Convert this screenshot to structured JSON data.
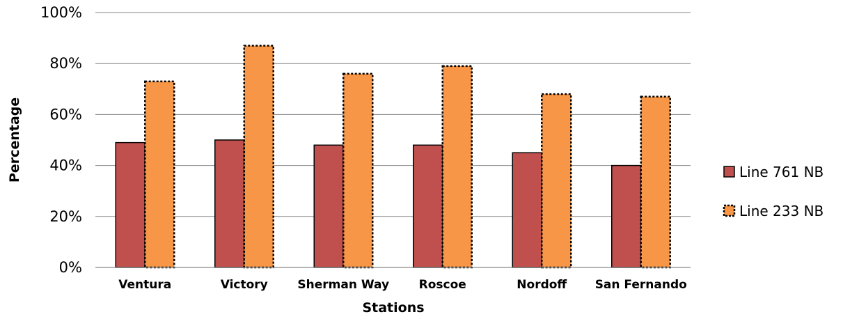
{
  "chart_data": {
    "type": "bar",
    "title": "",
    "xlabel": "Stations",
    "ylabel": "Percentage",
    "categories": [
      "Ventura",
      "Victory",
      "Sherman Way",
      "Roscoe",
      "Nordoff",
      "San Fernando"
    ],
    "series": [
      {
        "name": "Line 761 NB",
        "values": [
          49,
          50,
          48,
          48,
          45,
          40
        ],
        "color": "#C0504D"
      },
      {
        "name": "Line 233 NB",
        "values": [
          73,
          87,
          76,
          79,
          68,
          67
        ],
        "color": "#F79646"
      }
    ],
    "ylim": [
      0,
      100
    ],
    "yticks": [
      0,
      20,
      40,
      60,
      80,
      100
    ],
    "ytick_labels": [
      "0%",
      "20%",
      "40%",
      "60%",
      "80%",
      "100%"
    ],
    "grid": true,
    "legend": "right"
  }
}
